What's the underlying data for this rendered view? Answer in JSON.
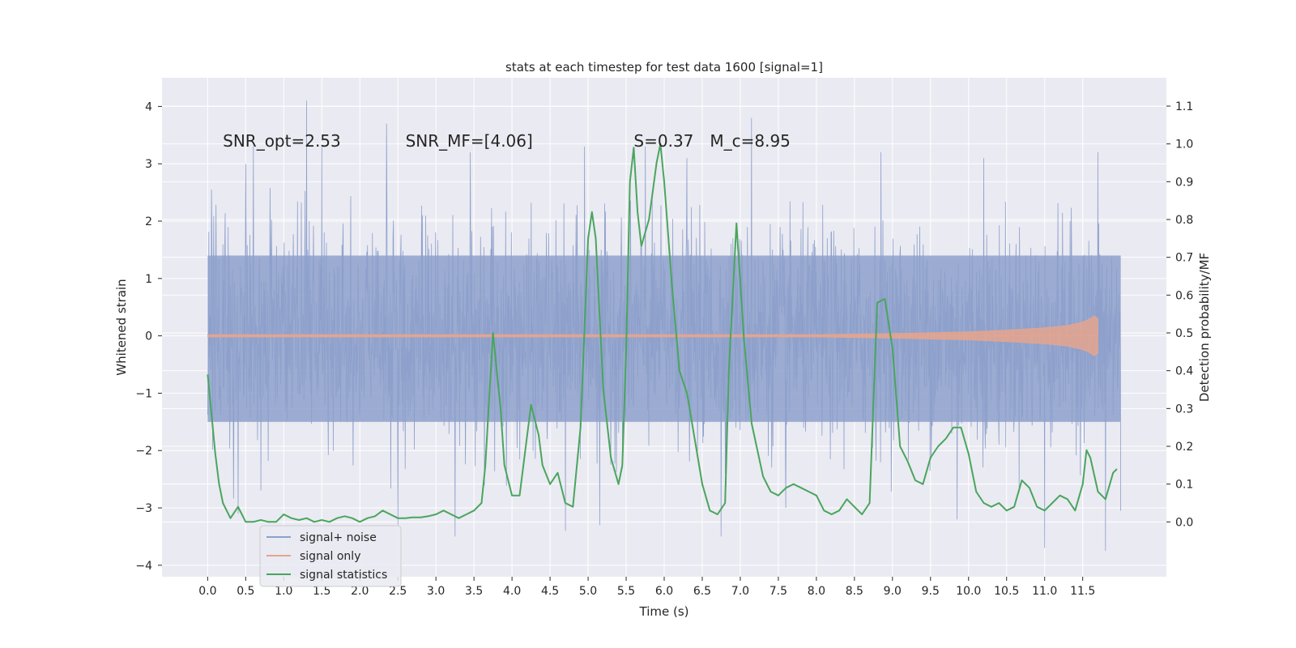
{
  "chart_data": {
    "type": "line",
    "title": "stats at each timestep for test data 1600 [signal=1]",
    "xlabel": "Time (s)",
    "ylabel": "Whitened strain",
    "y2label": "Detection probability/MF",
    "xlim": [
      -0.6,
      12.6
    ],
    "ylim": [
      -4.2,
      4.5
    ],
    "y2lim": [
      -0.145,
      1.175
    ],
    "x_ticks": [
      "0.0",
      "0.5",
      "1.0",
      "1.5",
      "2.0",
      "2.5",
      "3.0",
      "3.5",
      "4.0",
      "4.5",
      "5.0",
      "5.5",
      "6.0",
      "6.5",
      "7.0",
      "7.5",
      "8.0",
      "8.5",
      "9.0",
      "9.5",
      "10.0",
      "10.5",
      "11.0",
      "11.5"
    ],
    "y_ticks": [
      "−4",
      "−3",
      "−2",
      "−1",
      "0",
      "1",
      "2",
      "3",
      "4"
    ],
    "y2_ticks": [
      "0.0",
      "0.1",
      "0.2",
      "0.3",
      "0.4",
      "0.5",
      "0.6",
      "0.7",
      "0.8",
      "0.9",
      "1.0",
      "1.1"
    ],
    "grid": true,
    "legend_position": "lower-left",
    "annotations": [
      {
        "text": "SNR_opt=2.53",
        "x": 0.2,
        "y": 3.3
      },
      {
        "text": "SNR_MF=[4.06]",
        "x": 2.6,
        "y": 3.3
      },
      {
        "text": "S=0.37",
        "x": 5.6,
        "y": 3.3
      },
      {
        "text": "M_c=8.95",
        "x": 6.6,
        "y": 3.3
      }
    ],
    "series": [
      {
        "name": "signal+ noise",
        "color": "#8da0cb",
        "axis": "left",
        "x_range": [
          0.0,
          12.0
        ],
        "typical_envelope": [
          -1.5,
          1.4
        ],
        "peaks": [
          {
            "x": 0.05,
            "y": 2.55
          },
          {
            "x": 0.5,
            "y": 3.0
          },
          {
            "x": 0.6,
            "y": 3.3
          },
          {
            "x": 1.3,
            "y": 4.1
          },
          {
            "x": 1.5,
            "y": 3.3
          },
          {
            "x": 2.35,
            "y": 3.7
          },
          {
            "x": 3.45,
            "y": 3.2
          },
          {
            "x": 4.95,
            "y": 3.3
          },
          {
            "x": 5.75,
            "y": 3.3
          },
          {
            "x": 6.3,
            "y": 3.1
          },
          {
            "x": 6.75,
            "y": 3.4
          },
          {
            "x": 7.15,
            "y": 3.8
          },
          {
            "x": 8.85,
            "y": 3.2
          },
          {
            "x": 10.2,
            "y": 3.1
          },
          {
            "x": 11.7,
            "y": 3.2
          }
        ],
        "troughs": [
          {
            "x": 0.4,
            "y": -3.1
          },
          {
            "x": 2.5,
            "y": -3.3
          },
          {
            "x": 3.25,
            "y": -3.5
          },
          {
            "x": 4.7,
            "y": -3.4
          },
          {
            "x": 5.15,
            "y": -3.3
          },
          {
            "x": 6.75,
            "y": -3.5
          },
          {
            "x": 7.6,
            "y": -3.0
          },
          {
            "x": 9.85,
            "y": -3.2
          },
          {
            "x": 11.0,
            "y": -3.7
          },
          {
            "x": 11.8,
            "y": -3.75
          },
          {
            "x": 12.0,
            "y": -3.05
          }
        ]
      },
      {
        "name": "signal only",
        "color": "#e5a48e",
        "axis": "left",
        "x": [
          0,
          8.0,
          9.0,
          10.0,
          10.5,
          11.0,
          11.3,
          11.5,
          11.6,
          11.65,
          11.7
        ],
        "amplitude": [
          0.02,
          0.02,
          0.04,
          0.07,
          0.1,
          0.14,
          0.18,
          0.24,
          0.3,
          0.35,
          0.3
        ]
      },
      {
        "name": "signal statistics",
        "color": "#4aa55d",
        "axis": "right",
        "x": [
          0.0,
          0.1,
          0.15,
          0.2,
          0.3,
          0.4,
          0.5,
          0.6,
          0.7,
          0.8,
          0.9,
          1.0,
          1.1,
          1.2,
          1.3,
          1.4,
          1.5,
          1.6,
          1.7,
          1.8,
          1.9,
          2.0,
          2.1,
          2.2,
          2.3,
          2.4,
          2.5,
          2.6,
          2.7,
          2.8,
          2.9,
          3.0,
          3.1,
          3.2,
          3.3,
          3.4,
          3.5,
          3.6,
          3.65,
          3.75,
          3.85,
          3.9,
          4.0,
          4.1,
          4.15,
          4.25,
          4.35,
          4.4,
          4.5,
          4.6,
          4.7,
          4.8,
          4.9,
          5.0,
          5.05,
          5.1,
          5.2,
          5.3,
          5.4,
          5.45,
          5.5,
          5.55,
          5.6,
          5.65,
          5.7,
          5.8,
          5.9,
          5.95,
          6.0,
          6.1,
          6.2,
          6.3,
          6.4,
          6.5,
          6.6,
          6.7,
          6.8,
          6.85,
          6.95,
          7.05,
          7.15,
          7.3,
          7.4,
          7.5,
          7.6,
          7.7,
          7.8,
          7.9,
          8.0,
          8.1,
          8.2,
          8.3,
          8.4,
          8.5,
          8.6,
          8.7,
          8.8,
          8.9,
          9.0,
          9.1,
          9.2,
          9.3,
          9.4,
          9.5,
          9.6,
          9.7,
          9.8,
          9.9,
          10.0,
          10.1,
          10.2,
          10.3,
          10.4,
          10.5,
          10.6,
          10.7,
          10.8,
          10.9,
          11.0,
          11.1,
          11.2,
          11.3,
          11.4,
          11.5,
          11.55,
          11.6,
          11.7,
          11.8,
          11.9,
          11.95
        ],
        "values": [
          0.39,
          0.18,
          0.1,
          0.05,
          0.01,
          0.04,
          0.0,
          0.0,
          0.005,
          0.0,
          0.0,
          0.02,
          0.01,
          0.005,
          0.01,
          0.0,
          0.005,
          0.0,
          0.01,
          0.015,
          0.01,
          0.0,
          0.01,
          0.015,
          0.03,
          0.02,
          0.01,
          0.01,
          0.012,
          0.012,
          0.015,
          0.02,
          0.03,
          0.02,
          0.01,
          0.02,
          0.03,
          0.05,
          0.15,
          0.5,
          0.3,
          0.15,
          0.07,
          0.07,
          0.15,
          0.31,
          0.23,
          0.15,
          0.1,
          0.13,
          0.05,
          0.04,
          0.25,
          0.75,
          0.82,
          0.75,
          0.35,
          0.17,
          0.1,
          0.15,
          0.45,
          0.9,
          0.99,
          0.82,
          0.73,
          0.8,
          0.95,
          1.0,
          0.9,
          0.63,
          0.4,
          0.34,
          0.22,
          0.1,
          0.03,
          0.02,
          0.05,
          0.4,
          0.79,
          0.48,
          0.26,
          0.12,
          0.08,
          0.07,
          0.09,
          0.1,
          0.09,
          0.08,
          0.07,
          0.03,
          0.02,
          0.03,
          0.06,
          0.04,
          0.02,
          0.05,
          0.58,
          0.59,
          0.46,
          0.2,
          0.16,
          0.11,
          0.1,
          0.17,
          0.2,
          0.22,
          0.25,
          0.25,
          0.18,
          0.08,
          0.05,
          0.04,
          0.05,
          0.03,
          0.04,
          0.11,
          0.09,
          0.04,
          0.03,
          0.05,
          0.07,
          0.06,
          0.03,
          0.1,
          0.19,
          0.17,
          0.08,
          0.06,
          0.13,
          0.14
        ]
      }
    ]
  }
}
